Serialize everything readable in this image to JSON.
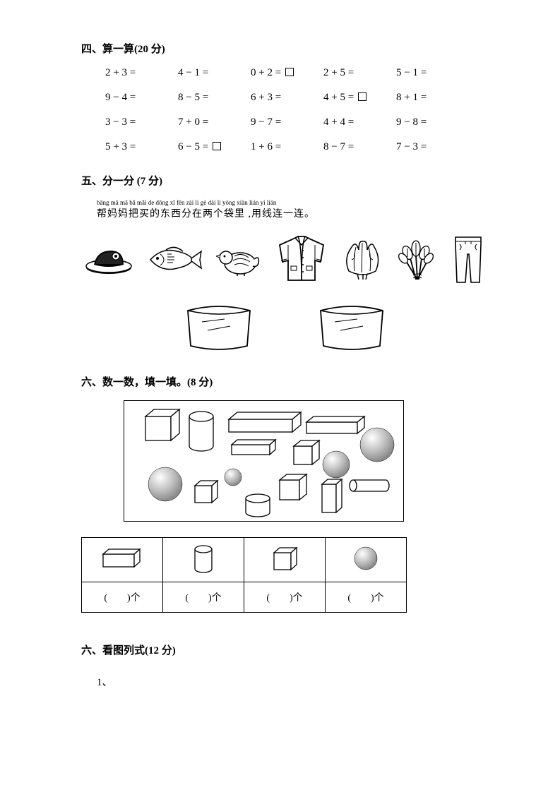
{
  "section4": {
    "title": "四、算一算(20 分)",
    "rows": [
      [
        "2 + 3 =",
        "4 − 1 =",
        "0 + 2 = □",
        "2 + 5 =",
        "5 − 1 ="
      ],
      [
        "9 − 4 =",
        "8 − 5 =",
        "6 + 3 =",
        "4 + 5 = □",
        "8 + 1 ="
      ],
      [
        "3 − 3 =",
        "7 + 0 =",
        "9 − 7 =",
        "4 + 4 =",
        "9 − 8 ="
      ],
      [
        "5 + 3 =",
        "6 − 5 = □",
        "1 + 6 =",
        "8 − 7 =",
        "7 − 3 ="
      ]
    ]
  },
  "section5": {
    "title": "五、分一分  (7 分)",
    "pinyin": "bāng mā mā  bǎ  mǎi  de  dōng  xī  fēn  zài  li   gè  dài  li   yòng xiàn lián  yi  lián",
    "instruction": "帮妈妈把买的东西分在两个袋里 ,用线连一连。",
    "item_colors": {
      "stroke": "#000000",
      "fill": "#ffffff"
    }
  },
  "section6a": {
    "title": "六、数一数，填一填。(8 分)",
    "table_answer": "(　　)个",
    "shape_colors": {
      "cuboid_stroke": "#000000",
      "cylinder_stroke": "#000000",
      "sphere_fill_light": "#ffffff",
      "sphere_fill_dark": "#9a9a9a"
    }
  },
  "section6b": {
    "title": "六、看图列式(12 分)",
    "first_item": "1、"
  },
  "colors": {
    "text": "#000000",
    "background": "#ffffff",
    "border": "#000000"
  },
  "fonts": {
    "body_size": 14,
    "title_size": 15,
    "pinyin_size": 9
  }
}
